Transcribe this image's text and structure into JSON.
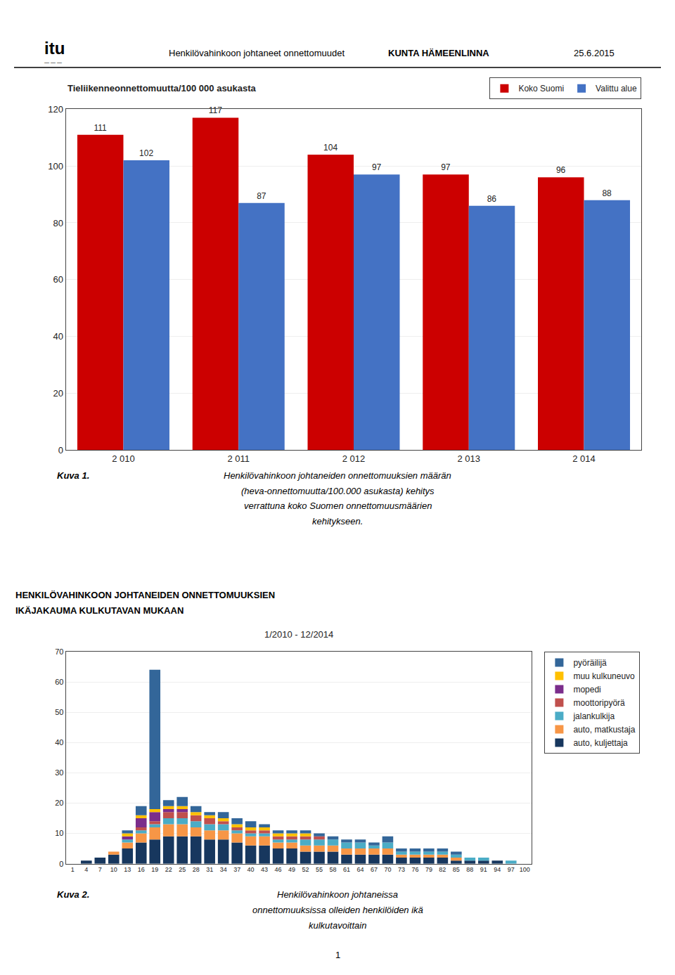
{
  "chart_data": [
    {
      "type": "bar",
      "title": "Tieliikenneonnettomuutta/100 000 asukasta",
      "categories": [
        "2 010",
        "2 011",
        "2 012",
        "2 013",
        "2 014"
      ],
      "series": [
        {
          "name": "Koko Suomi",
          "color": "#cc0000",
          "values": [
            111,
            117,
            104,
            97,
            96
          ]
        },
        {
          "name": "Valittu alue",
          "color": "#4472c4",
          "values": [
            102,
            87,
            97,
            86,
            88
          ]
        }
      ],
      "ylim": [
        0,
        120
      ],
      "yticks": [
        0,
        20,
        40,
        60,
        80,
        100,
        120
      ],
      "grid": true,
      "legend": "upper right",
      "data_labels": true,
      "annotations": [
        "itu",
        "— — —",
        "Henkilövahinkoon johtaneet onnettomuudet",
        "KUNTA HÄMEENLINNA",
        "25.6.2015",
        "Kuva 1.",
        "Henkilövahinkoon johtaneiden onnettomuuksien määrän",
        "(heva-onnettomuutta/100.000 asukasta) kehitys",
        "verrattuna koko Suomen onnettomuusmäärien",
        "kehitykseen."
      ]
    },
    {
      "type": "bar",
      "stacked": true,
      "title": "1/2010 - 12/2014",
      "categories": [
        "1",
        "4",
        "7",
        "10",
        "13",
        "16",
        "19",
        "22",
        "25",
        "28",
        "31",
        "34",
        "37",
        "40",
        "43",
        "46",
        "49",
        "52",
        "55",
        "58",
        "61",
        "64",
        "67",
        "70",
        "73",
        "76",
        "79",
        "82",
        "85",
        "88",
        "91",
        "94",
        "97",
        "100"
      ],
      "series": [
        {
          "name": "auto, kuljettaja",
          "color": "#17375e",
          "values": [
            0,
            1,
            2,
            3,
            5,
            7,
            8,
            9,
            9,
            9,
            8,
            8,
            7,
            6,
            6,
            5,
            5,
            4,
            4,
            4,
            3,
            3,
            3,
            3,
            2,
            2,
            2,
            2,
            1,
            1,
            1,
            1,
            0,
            0
          ]
        },
        {
          "name": "auto, matkustaja",
          "color": "#f79646",
          "values": [
            0,
            0,
            0,
            1,
            2,
            3,
            4,
            4,
            4,
            3,
            3,
            3,
            3,
            3,
            3,
            2,
            2,
            2,
            2,
            2,
            2,
            2,
            2,
            2,
            1,
            1,
            1,
            1,
            1,
            0,
            0,
            0,
            0,
            0
          ]
        },
        {
          "name": "jalankulkija",
          "color": "#4bacc6",
          "values": [
            0,
            0,
            0,
            0,
            1,
            1,
            1,
            2,
            2,
            2,
            2,
            2,
            1,
            1,
            1,
            1,
            1,
            2,
            2,
            2,
            2,
            2,
            1,
            2,
            1,
            1,
            1,
            1,
            1,
            1,
            1,
            0,
            1,
            0
          ]
        },
        {
          "name": "moottoripyörä",
          "color": "#c0504d",
          "values": [
            0,
            0,
            0,
            0,
            0,
            1,
            1,
            2,
            2,
            2,
            2,
            1,
            1,
            1,
            1,
            1,
            1,
            1,
            1,
            0,
            0,
            0,
            0,
            0,
            0,
            0,
            0,
            0,
            0,
            0,
            0,
            0,
            0,
            0
          ]
        },
        {
          "name": "mopedi",
          "color": "#7b2d8b",
          "values": [
            0,
            0,
            0,
            0,
            1,
            3,
            3,
            1,
            1,
            0,
            0,
            0,
            0,
            0,
            0,
            0,
            0,
            0,
            0,
            0,
            0,
            0,
            0,
            0,
            0,
            0,
            0,
            0,
            0,
            0,
            0,
            0,
            0,
            0
          ]
        },
        {
          "name": "muu kulkuneuvo",
          "color": "#ffc000",
          "values": [
            0,
            0,
            0,
            0,
            1,
            1,
            1,
            1,
            1,
            1,
            1,
            1,
            1,
            1,
            1,
            1,
            1,
            1,
            0,
            0,
            0,
            0,
            0,
            0,
            0,
            0,
            0,
            0,
            0,
            0,
            0,
            0,
            0,
            0
          ]
        },
        {
          "name": "pyöräilijä",
          "color": "#336699",
          "values": [
            0,
            0,
            0,
            0,
            1,
            3,
            46,
            2,
            3,
            2,
            1,
            2,
            2,
            2,
            1,
            1,
            1,
            1,
            1,
            1,
            1,
            1,
            1,
            2,
            1,
            1,
            1,
            1,
            1,
            0,
            0,
            0,
            0,
            0
          ]
        }
      ],
      "ylim": [
        0,
        70
      ],
      "yticks": [
        0,
        10,
        20,
        30,
        40,
        50,
        60,
        70
      ],
      "grid": true,
      "legend": "right",
      "data_labels": false,
      "annotations": [
        "HENKILÖVAHINKOON JOHTANEIDEN ONNETTOMUUKSIEN",
        "IKÄJAKAUMA KULKUTAVAN MUKAAN",
        "Kuva 2.",
        "Henkilövahinkoon johtaneissa",
        "onnettomuuksissa olleiden henkilöiden ikä",
        "kulkutavoittain",
        "1"
      ]
    }
  ]
}
